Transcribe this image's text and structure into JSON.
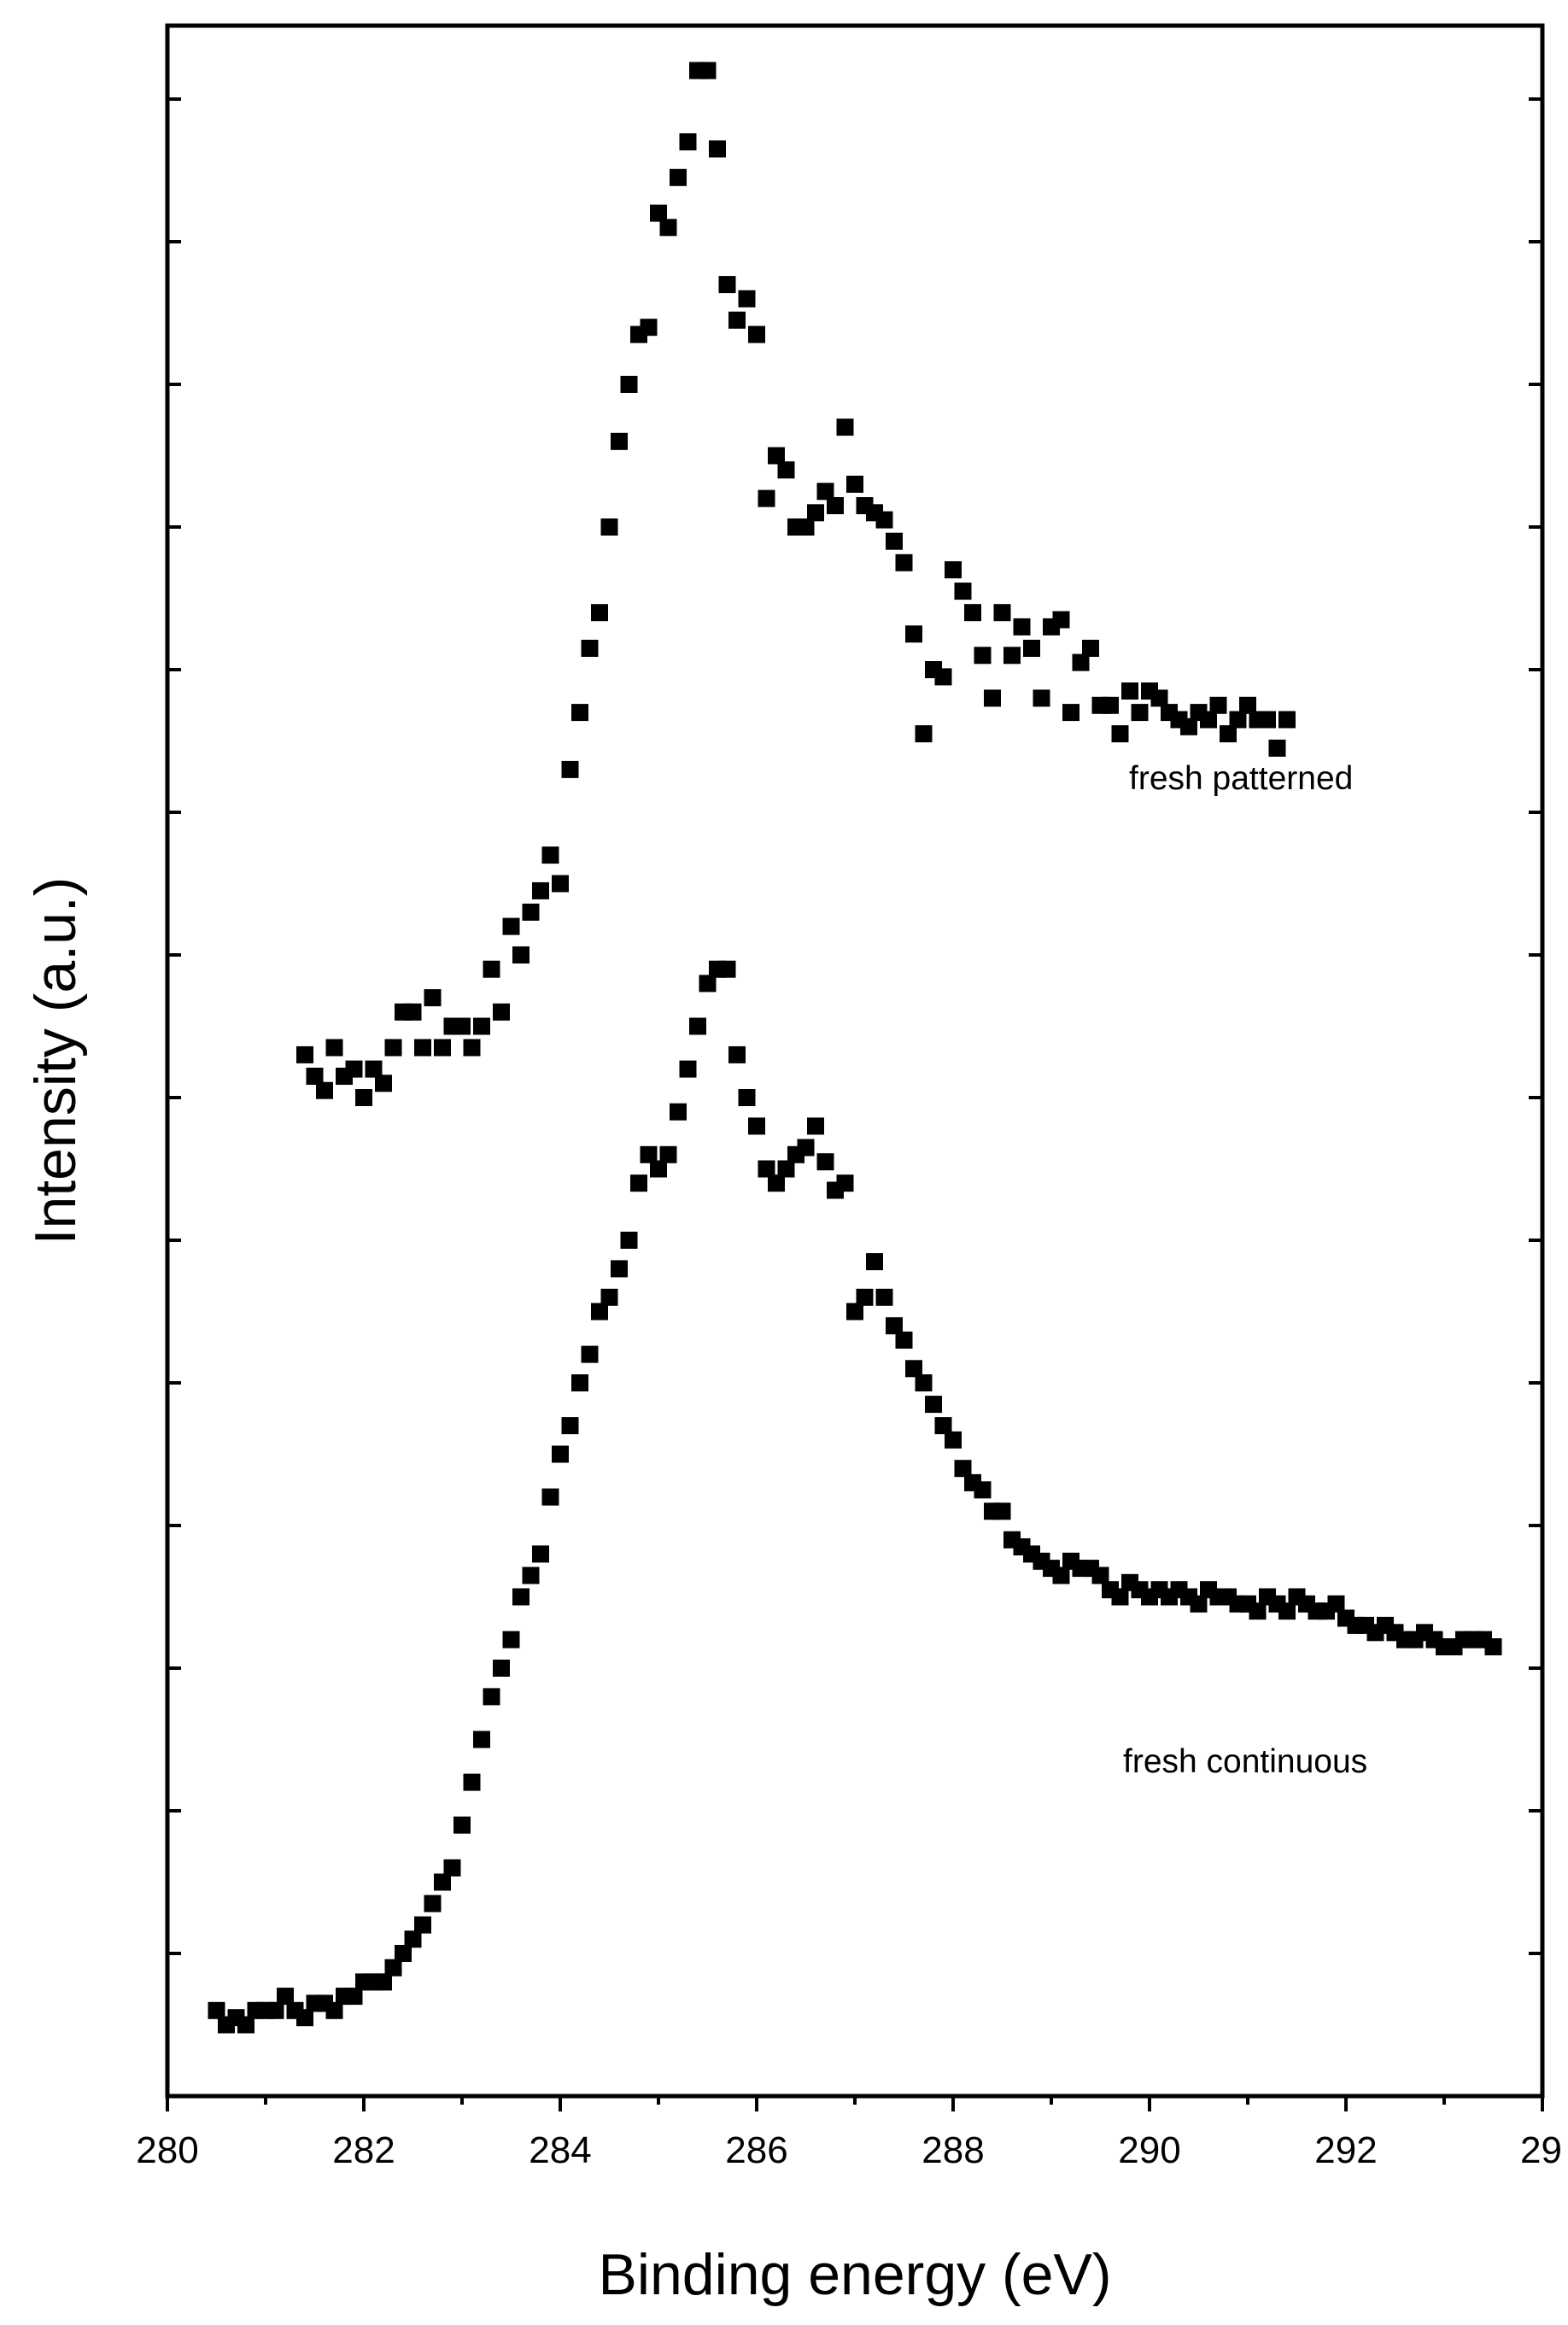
{
  "chart_data": {
    "type": "scatter",
    "xlabel": "Binding energy (eV)",
    "ylabel": "Intensity (a.u.)",
    "xlim": [
      280,
      294
    ],
    "ylim": [
      0,
      14
    ],
    "x_ticks": [
      "280",
      "282",
      "284",
      "286",
      "288",
      "290",
      "292",
      "29"
    ],
    "y_ticks_labeled": false,
    "marker": "square",
    "marker_color": "#000000",
    "grid": false,
    "series": [
      {
        "name": "fresh patterned",
        "x": [
          281.4,
          281.5,
          281.6,
          281.7,
          281.8,
          281.9,
          282.0,
          282.1,
          282.2,
          282.3,
          282.4,
          282.5,
          282.6,
          282.7,
          282.8,
          282.9,
          283.0,
          283.1,
          283.2,
          283.3,
          283.4,
          283.5,
          283.6,
          283.7,
          283.8,
          283.9,
          284.0,
          284.1,
          284.2,
          284.3,
          284.4,
          284.5,
          284.6,
          284.7,
          284.8,
          284.9,
          285.0,
          285.1,
          285.2,
          285.3,
          285.4,
          285.5,
          285.6,
          285.7,
          285.8,
          285.9,
          286.0,
          286.1,
          286.2,
          286.3,
          286.4,
          286.5,
          286.6,
          286.7,
          286.8,
          286.9,
          287.0,
          287.1,
          287.2,
          287.3,
          287.4,
          287.5,
          287.6,
          287.7,
          287.8,
          287.9,
          288.0,
          288.1,
          288.2,
          288.3,
          288.4,
          288.5,
          288.6,
          288.7,
          288.8,
          288.9,
          289.0,
          289.1,
          289.2,
          289.3,
          289.4,
          289.5,
          289.6,
          289.7,
          289.8,
          289.9,
          290.0,
          290.1,
          290.2,
          290.3,
          290.4,
          290.5,
          290.6,
          290.7,
          290.8,
          290.9,
          291.0,
          291.1,
          291.2,
          291.3,
          291.4
        ],
        "y": [
          7.3,
          7.15,
          7.05,
          7.35,
          7.15,
          7.2,
          7.0,
          7.2,
          7.1,
          7.35,
          7.6,
          7.6,
          7.35,
          7.7,
          7.35,
          7.5,
          7.5,
          7.35,
          7.5,
          7.9,
          7.6,
          8.2,
          8.0,
          8.3,
          8.45,
          8.7,
          8.5,
          9.3,
          9.7,
          10.15,
          10.4,
          11.0,
          11.6,
          12.0,
          12.35,
          12.4,
          13.2,
          13.1,
          13.45,
          13.7,
          14.2,
          14.2,
          13.65,
          12.7,
          12.45,
          12.6,
          12.35,
          11.2,
          11.5,
          11.4,
          11.0,
          11.0,
          11.1,
          11.25,
          11.15,
          11.7,
          11.3,
          11.15,
          11.1,
          11.05,
          10.9,
          10.75,
          10.25,
          9.55,
          10.0,
          9.95,
          10.7,
          10.55,
          10.4,
          10.1,
          9.8,
          10.4,
          10.1,
          10.3,
          10.15,
          9.8,
          10.3,
          10.35,
          9.7,
          10.05,
          10.15,
          9.75,
          9.75,
          9.55,
          9.85,
          9.7,
          9.85,
          9.8,
          9.7,
          9.65,
          9.6,
          9.7,
          9.65,
          9.75,
          9.55,
          9.65,
          9.75,
          9.65,
          9.65,
          9.45,
          9.65
        ],
        "marker_color": "#000000"
      },
      {
        "name": "fresh continuous",
        "x": [
          280.5,
          280.6,
          280.7,
          280.8,
          280.9,
          281.0,
          281.1,
          281.2,
          281.3,
          281.4,
          281.5,
          281.6,
          281.7,
          281.8,
          281.9,
          282.0,
          282.1,
          282.2,
          282.3,
          282.4,
          282.5,
          282.6,
          282.7,
          282.8,
          282.9,
          283.0,
          283.1,
          283.2,
          283.3,
          283.4,
          283.5,
          283.6,
          283.7,
          283.8,
          283.9,
          284.0,
          284.1,
          284.2,
          284.3,
          284.4,
          284.5,
          284.6,
          284.7,
          284.8,
          284.9,
          285.0,
          285.1,
          285.2,
          285.3,
          285.4,
          285.5,
          285.6,
          285.7,
          285.8,
          285.9,
          286.0,
          286.1,
          286.2,
          286.3,
          286.4,
          286.5,
          286.6,
          286.7,
          286.8,
          286.9,
          287.0,
          287.1,
          287.2,
          287.3,
          287.4,
          287.5,
          287.6,
          287.7,
          287.8,
          287.9,
          288.0,
          288.1,
          288.2,
          288.3,
          288.4,
          288.5,
          288.6,
          288.7,
          288.8,
          288.9,
          289.0,
          289.1,
          289.2,
          289.3,
          289.4,
          289.5,
          289.6,
          289.7,
          289.8,
          289.9,
          290.0,
          290.1,
          290.2,
          290.3,
          290.4,
          290.5,
          290.6,
          290.7,
          290.8,
          290.9,
          291.0,
          291.1,
          291.2,
          291.3,
          291.4,
          291.5,
          291.6,
          291.7,
          291.8,
          291.9,
          292.0,
          292.1,
          292.2,
          292.3,
          292.4,
          292.5,
          292.6,
          292.7,
          292.8,
          292.9,
          293.0,
          293.1,
          293.2,
          293.3,
          293.4,
          293.5
        ],
        "y": [
          0.6,
          0.5,
          0.55,
          0.5,
          0.6,
          0.6,
          0.6,
          0.7,
          0.6,
          0.55,
          0.65,
          0.65,
          0.6,
          0.7,
          0.7,
          0.8,
          0.8,
          0.8,
          0.9,
          1.0,
          1.1,
          1.2,
          1.35,
          1.5,
          1.6,
          1.9,
          2.2,
          2.5,
          2.8,
          3.0,
          3.2,
          3.5,
          3.65,
          3.8,
          4.2,
          4.5,
          4.7,
          5.0,
          5.2,
          5.5,
          5.6,
          5.8,
          6.0,
          6.4,
          6.6,
          6.5,
          6.6,
          6.9,
          7.2,
          7.5,
          7.8,
          7.9,
          7.9,
          7.3,
          7.0,
          6.8,
          6.5,
          6.4,
          6.5,
          6.6,
          6.65,
          6.8,
          6.55,
          6.35,
          6.4,
          5.5,
          5.6,
          5.85,
          5.6,
          5.4,
          5.3,
          5.1,
          5.0,
          4.85,
          4.7,
          4.6,
          4.4,
          4.3,
          4.25,
          4.1,
          4.1,
          3.9,
          3.85,
          3.8,
          3.75,
          3.7,
          3.65,
          3.75,
          3.7,
          3.7,
          3.65,
          3.55,
          3.5,
          3.6,
          3.55,
          3.5,
          3.55,
          3.5,
          3.55,
          3.5,
          3.45,
          3.55,
          3.5,
          3.5,
          3.45,
          3.45,
          3.4,
          3.5,
          3.45,
          3.4,
          3.5,
          3.45,
          3.4,
          3.4,
          3.45,
          3.35,
          3.3,
          3.3,
          3.25,
          3.3,
          3.25,
          3.2,
          3.2,
          3.25,
          3.2,
          3.15,
          3.15,
          3.2,
          3.2,
          3.2,
          3.15
        ],
        "marker_color": "#000000"
      }
    ],
    "annotations": [
      "fresh patterned",
      "fresh continuous"
    ]
  }
}
